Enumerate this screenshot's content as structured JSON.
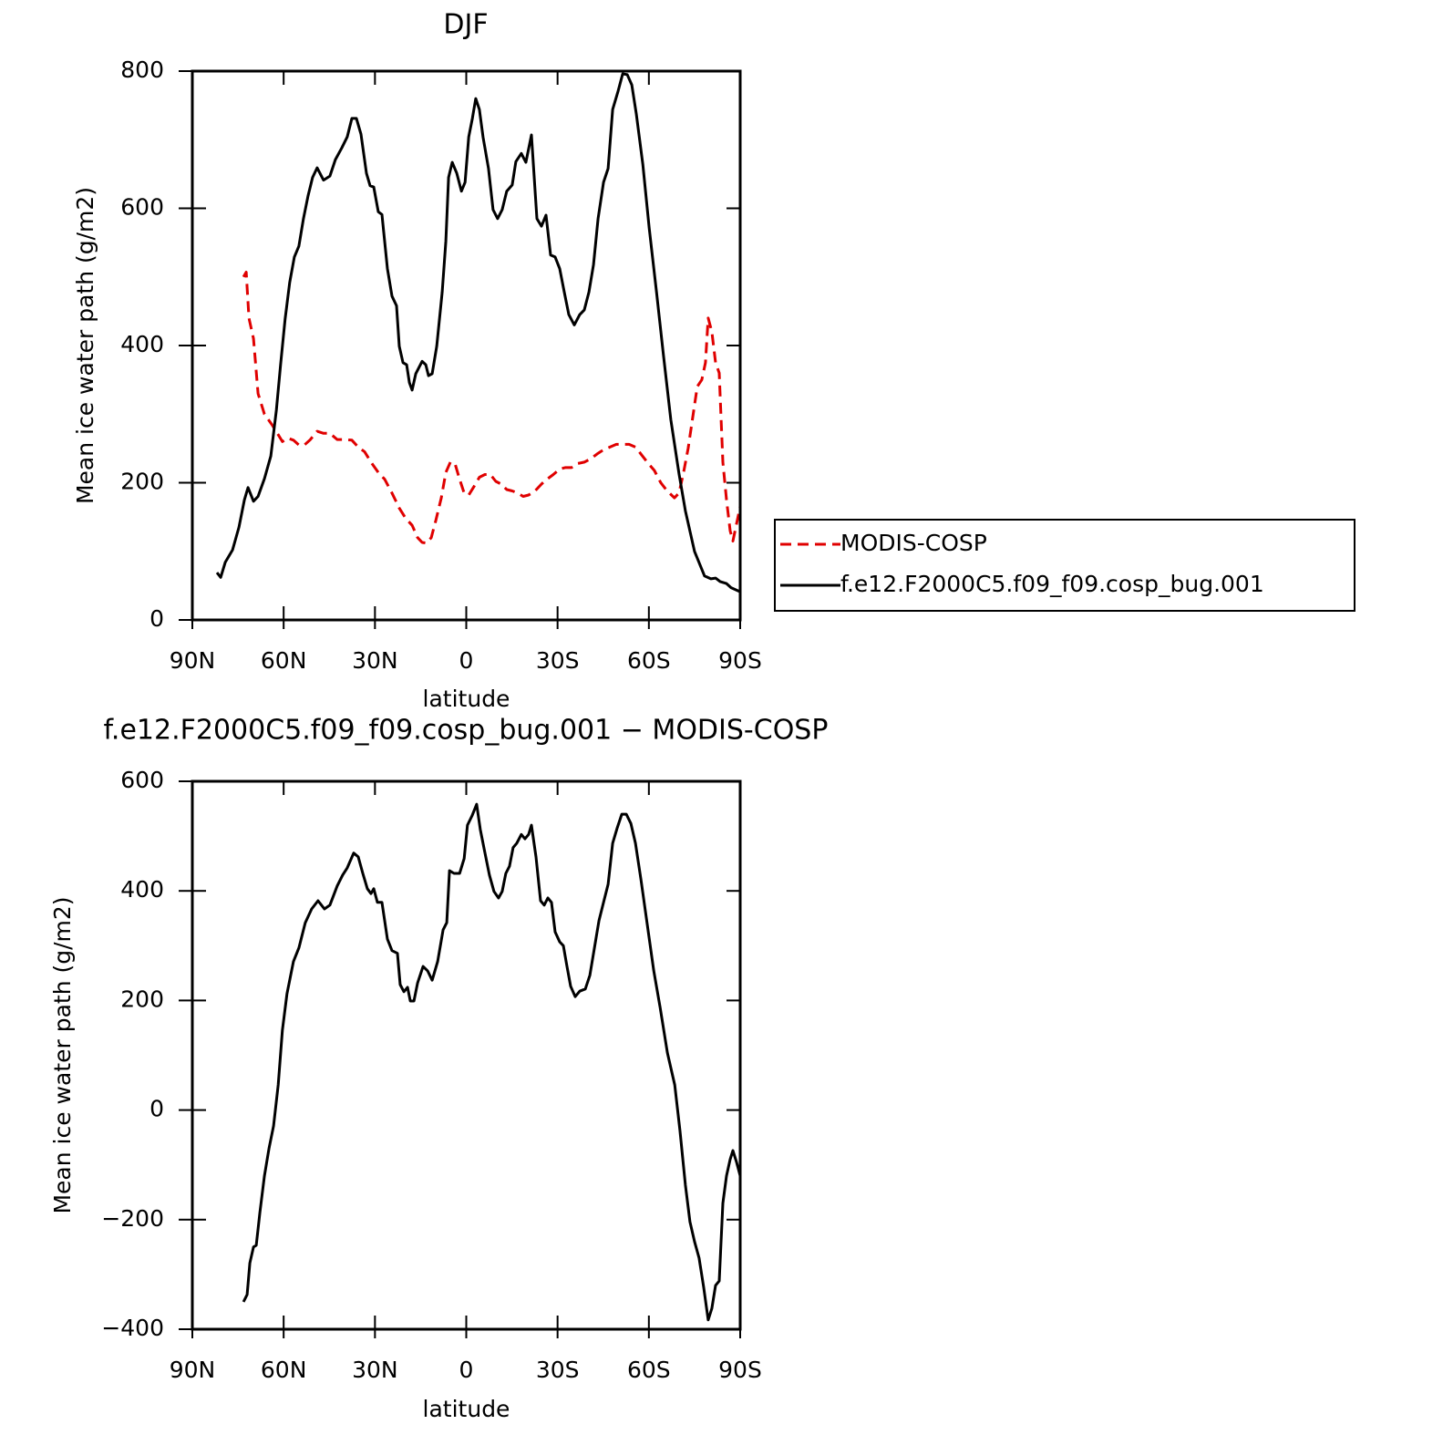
{
  "chart_data": [
    {
      "type": "line",
      "title": "DJF",
      "xlabel": "latitude",
      "ylabel": "Mean ice water path (g/m2)",
      "xlim": [
        90,
        -90
      ],
      "xticks": [
        {
          "value": 90,
          "label": "90N"
        },
        {
          "value": 60,
          "label": "60N"
        },
        {
          "value": 30,
          "label": "30N"
        },
        0,
        {
          "value": -30,
          "label": "30S"
        },
        {
          "value": -60,
          "label": "60S"
        },
        {
          "value": -90,
          "label": "90S"
        }
      ],
      "ylim": [
        0,
        800
      ],
      "yticks": [
        0,
        200,
        400,
        600,
        800
      ],
      "legend": "outside-right",
      "series": [
        {
          "name": "MODIS-COSP",
          "color": "#e00000",
          "dash": "dashed",
          "x": [
            73.2,
            72.3,
            71.4,
            69.9,
            68.4,
            66.3,
            63.9,
            61.8,
            60.4,
            58.6,
            56.8,
            55.0,
            53.2,
            51.4,
            49.0,
            46.9,
            44.8,
            42.4,
            40.0,
            37.6,
            35.5,
            33.4,
            31.0,
            28.9,
            26.8,
            24.4,
            22.0,
            19.9,
            17.8,
            16.0,
            14.5,
            13.0,
            11.5,
            10.0,
            8.2,
            6.7,
            5.2,
            3.7,
            2.2,
            0.7,
            -0.8,
            -2.6,
            -4.3,
            -6.1,
            -7.9,
            -9.7,
            -11.5,
            -13.3,
            -15.1,
            -16.9,
            -18.7,
            -20.5,
            -22.6,
            -24.7,
            -26.5,
            -28.6,
            -30.7,
            -32.5,
            -34.6,
            -36.7,
            -38.8,
            -40.9,
            -43.0,
            -45.1,
            -47.2,
            -49.3,
            -51.4,
            -53.5,
            -55.6,
            -57.7,
            -59.8,
            -61.8,
            -63.9,
            -66.0,
            -68.4,
            -69.9,
            -71.4,
            -72.9,
            -74.4,
            -75.9,
            -77.4,
            -78.6,
            -79.5,
            -80.7,
            -81.9,
            -83.1,
            -84.3,
            -85.5,
            -86.7,
            -87.6,
            -88.8,
            -90.0
          ],
          "values": [
            500,
            507,
            440,
            410,
            330,
            300,
            285,
            270,
            260,
            265,
            262,
            255,
            255,
            262,
            275,
            272,
            272,
            263,
            263,
            262,
            252,
            245,
            228,
            215,
            205,
            185,
            163,
            148,
            138,
            120,
            113,
            112,
            120,
            145,
            178,
            215,
            230,
            228,
            205,
            185,
            182,
            195,
            208,
            212,
            212,
            202,
            198,
            190,
            188,
            185,
            180,
            182,
            188,
            198,
            205,
            212,
            220,
            222,
            222,
            228,
            230,
            235,
            242,
            248,
            252,
            256,
            256,
            256,
            252,
            240,
            228,
            218,
            200,
            188,
            178,
            185,
            215,
            250,
            295,
            340,
            350,
            375,
            440,
            420,
            375,
            360,
            230,
            175,
            130,
            115,
            140,
            165
          ]
        },
        {
          "name": "f.e12.F2000C5.f09_f09.cosp_bug.001",
          "color": "#000000",
          "dash": "solid",
          "x": [
            81.9,
            80.7,
            79.2,
            76.8,
            74.7,
            72.9,
            71.7,
            69.9,
            68.4,
            66.3,
            64.2,
            62.4,
            61.0,
            59.5,
            58.0,
            56.5,
            55.0,
            53.5,
            52.0,
            50.5,
            49.0,
            46.9,
            44.8,
            43.0,
            40.9,
            39.1,
            37.6,
            36.1,
            34.6,
            32.8,
            31.6,
            30.4,
            28.9,
            27.7,
            25.9,
            24.4,
            22.9,
            22.0,
            20.8,
            19.6,
            18.7,
            17.8,
            16.6,
            14.5,
            13.3,
            12.4,
            11.2,
            9.7,
            7.9,
            6.7,
            5.8,
            4.6,
            3.1,
            1.6,
            0.4,
            -0.8,
            -2.0,
            -3.1,
            -4.3,
            -5.5,
            -7.3,
            -8.8,
            -10.3,
            -11.8,
            -13.3,
            -15.1,
            -16.3,
            -18.1,
            -19.6,
            -21.4,
            -23.2,
            -24.7,
            -26.2,
            -27.7,
            -29.2,
            -30.7,
            -32.2,
            -33.7,
            -35.5,
            -37.3,
            -38.8,
            -40.3,
            -41.8,
            -43.3,
            -45.1,
            -46.6,
            -48.1,
            -49.9,
            -51.4,
            -52.9,
            -54.4,
            -55.9,
            -58.0,
            -60.1,
            -62.5,
            -64.8,
            -67.2,
            -69.9,
            -72.0,
            -75.0,
            -78.3,
            -80.4,
            -81.9,
            -83.4,
            -85.5,
            -87.0,
            -90.0
          ],
          "values": [
            69,
            62,
            84,
            102,
            135,
            175,
            193,
            173,
            180,
            206,
            239,
            306,
            372,
            439,
            492,
            529,
            545,
            585,
            618,
            645,
            659,
            641,
            647,
            671,
            688,
            704,
            731,
            731,
            708,
            651,
            633,
            631,
            595,
            591,
            512,
            472,
            458,
            399,
            375,
            372,
            346,
            335,
            359,
            377,
            372,
            356,
            359,
            399,
            478,
            552,
            645,
            667,
            651,
            625,
            638,
            704,
            731,
            760,
            744,
            704,
            658,
            598,
            585,
            598,
            625,
            634,
            668,
            680,
            667,
            707,
            585,
            574,
            590,
            532,
            529,
            512,
            478,
            445,
            430,
            445,
            452,
            478,
            518,
            585,
            638,
            658,
            744,
            771,
            796,
            795,
            780,
            737,
            664,
            571,
            478,
            385,
            292,
            213,
            159,
            100,
            64,
            60,
            61,
            56,
            53,
            47,
            41
          ]
        }
      ]
    },
    {
      "type": "line",
      "title": "f.e12.F2000C5.f09_f09.cosp_bug.001 − MODIS-COSP",
      "xlabel": "latitude",
      "ylabel": "Mean ice water path (g/m2)",
      "xlim": [
        90,
        -90
      ],
      "xticks": [
        {
          "value": 90,
          "label": "90N"
        },
        {
          "value": 60,
          "label": "60N"
        },
        {
          "value": 30,
          "label": "30N"
        },
        0,
        {
          "value": -30,
          "label": "30S"
        },
        {
          "value": -60,
          "label": "60S"
        },
        {
          "value": -90,
          "label": "90S"
        }
      ],
      "ylim": [
        -400,
        600
      ],
      "yticks": [
        {
          "value": -400,
          "label": "−400"
        },
        {
          "value": -200,
          "label": "−200"
        },
        0,
        200,
        400,
        600
      ],
      "series": [
        {
          "color": "#000000",
          "dash": "solid",
          "x": [
            73.2,
            72.0,
            71.1,
            69.9,
            69.0,
            67.8,
            66.3,
            64.8,
            63.3,
            61.8,
            60.4,
            58.9,
            56.8,
            55.0,
            52.9,
            50.8,
            48.7,
            46.6,
            44.8,
            42.4,
            40.6,
            39.1,
            37.0,
            35.5,
            34.0,
            32.5,
            31.3,
            30.4,
            29.2,
            27.7,
            25.9,
            24.4,
            22.6,
            21.7,
            20.5,
            19.3,
            18.4,
            17.2,
            16.0,
            14.2,
            12.7,
            11.2,
            9.4,
            7.6,
            6.4,
            5.5,
            4.0,
            2.2,
            0.7,
            -0.4,
            -1.9,
            -3.4,
            -4.6,
            -6.1,
            -7.6,
            -9.1,
            -10.6,
            -11.8,
            -13.0,
            -14.2,
            -15.4,
            -16.6,
            -18.1,
            -19.3,
            -20.5,
            -21.4,
            -22.9,
            -24.4,
            -25.6,
            -26.8,
            -28.0,
            -29.2,
            -30.7,
            -31.9,
            -33.1,
            -34.3,
            -35.8,
            -37.3,
            -39.1,
            -40.6,
            -42.1,
            -43.6,
            -45.1,
            -46.6,
            -48.1,
            -49.6,
            -51.1,
            -52.6,
            -54.1,
            -55.6,
            -57.4,
            -59.5,
            -61.6,
            -63.7,
            -66.1,
            -68.5,
            -70.2,
            -72.0,
            -73.5,
            -75.0,
            -76.5,
            -78.0,
            -79.5,
            -80.7,
            -81.9,
            -83.1,
            -84.3,
            -85.5,
            -86.7,
            -87.6,
            -88.8,
            -90.0
          ],
          "values": [
            -350,
            -337,
            -279,
            -250,
            -247,
            -187,
            -120,
            -70,
            -29,
            46,
            146,
            212,
            271,
            296,
            342,
            367,
            382,
            367,
            374,
            409,
            429,
            442,
            469,
            462,
            432,
            404,
            395,
            404,
            379,
            379,
            312,
            291,
            286,
            229,
            216,
            224,
            199,
            199,
            232,
            262,
            254,
            237,
            271,
            329,
            342,
            437,
            432,
            432,
            459,
            520,
            537,
            558,
            512,
            470,
            429,
            399,
            387,
            399,
            432,
            445,
            479,
            487,
            503,
            495,
            503,
            520,
            462,
            382,
            374,
            387,
            379,
            325,
            307,
            300,
            262,
            226,
            207,
            217,
            221,
            246,
            296,
            346,
            379,
            412,
            487,
            515,
            540,
            540,
            523,
            487,
            420,
            337,
            254,
            187,
            104,
            46,
            -37,
            -137,
            -204,
            -240,
            -270,
            -323,
            -383,
            -362,
            -320,
            -312,
            -170,
            -120,
            -90,
            -74,
            -95,
            -120
          ]
        }
      ]
    }
  ]
}
